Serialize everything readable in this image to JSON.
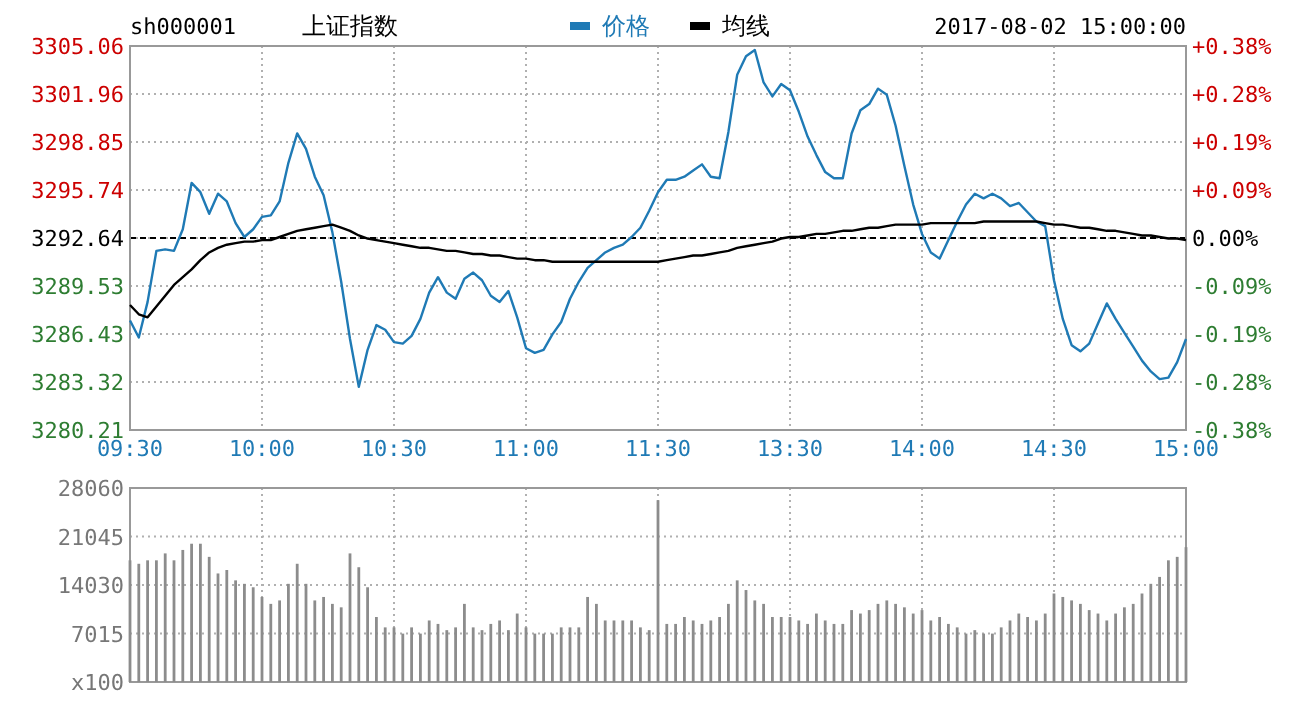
{
  "chart_data": [
    {
      "type": "line",
      "title": "上证指数",
      "subtitle": "sh000001",
      "annotations": [
        "2017-08-02 15:00:00"
      ],
      "legend": "top",
      "grid": true,
      "marker": "none",
      "line_style": "solid",
      "categories": [
        "09:30",
        null,
        null,
        null,
        null,
        null,
        null,
        null,
        null,
        null,
        null,
        null,
        null,
        null,
        null,
        "10:00",
        null,
        null,
        null,
        null,
        null,
        null,
        null,
        null,
        null,
        null,
        null,
        null,
        null,
        null,
        "10:30",
        null,
        null,
        null,
        null,
        null,
        null,
        null,
        null,
        null,
        null,
        null,
        null,
        null,
        null,
        "11:00",
        null,
        null,
        null,
        null,
        null,
        null,
        null,
        null,
        null,
        null,
        null,
        null,
        null,
        null,
        "11:30",
        null,
        null,
        null,
        null,
        null,
        null,
        null,
        null,
        null,
        null,
        null,
        null,
        null,
        null,
        "13:30",
        null,
        null,
        null,
        null,
        null,
        null,
        null,
        null,
        null,
        null,
        null,
        null,
        null,
        null,
        "14:00",
        null,
        null,
        null,
        null,
        null,
        null,
        null,
        null,
        null,
        null,
        null,
        null,
        null,
        null,
        "14:30",
        null,
        null,
        null,
        null,
        null,
        null,
        null,
        null,
        null,
        null,
        null,
        null,
        null,
        null,
        "15:00"
      ],
      "ylim": [
        3280.21,
        3305.06
      ],
      "yticks": [
        3280.21,
        3283.32,
        3286.43,
        3289.53,
        3292.64,
        3295.74,
        3298.85,
        3301.96,
        3305.06
      ],
      "y2lim": [
        -0.377,
        0.377
      ],
      "y2ticks": [
        {
          "value": -0.377,
          "label": "-0.38%"
        },
        {
          "value": -0.283,
          "label": "-0.28%"
        },
        {
          "value": -0.189,
          "label": "-0.19%"
        },
        {
          "value": -0.094,
          "label": "-0.09%"
        },
        {
          "value": 0,
          "label": "0.00%"
        },
        {
          "value": 0.094,
          "label": "+0.09%"
        },
        {
          "value": 0.189,
          "label": "+0.19%"
        },
        {
          "value": 0.283,
          "label": "+0.28%"
        },
        {
          "value": 0.377,
          "label": "+0.38%"
        }
      ],
      "ref_lines": [
        {
          "axis": "y",
          "value": 3292.64,
          "color": "#000000",
          "line_style": "dashed"
        }
      ],
      "series": [
        {
          "name": "价格",
          "color": "#1f7ab5",
          "values": [
            3287.3,
            3286.2,
            3288.5,
            3291.8,
            3291.9,
            3291.8,
            3293.2,
            3296.2,
            3295.6,
            3294.2,
            3295.5,
            3295.0,
            3293.6,
            3292.7,
            3293.2,
            3294.0,
            3294.1,
            3295.0,
            3297.5,
            3299.4,
            3298.4,
            3296.6,
            3295.4,
            3293.0,
            3289.8,
            3286.1,
            3283.0,
            3285.4,
            3287.0,
            3286.7,
            3285.9,
            3285.8,
            3286.3,
            3287.4,
            3289.1,
            3290.1,
            3289.1,
            3288.7,
            3290.0,
            3290.4,
            3289.9,
            3288.9,
            3288.5,
            3289.2,
            3287.5,
            3285.5,
            3285.2,
            3285.4,
            3286.4,
            3287.2,
            3288.7,
            3289.8,
            3290.7,
            3291.2,
            3291.7,
            3292.0,
            3292.2,
            3292.7,
            3293.3,
            3294.4,
            3295.6,
            3296.4,
            3296.4,
            3296.6,
            3297.0,
            3297.4,
            3296.6,
            3296.5,
            3299.5,
            3303.2,
            3304.4,
            3304.8,
            3302.7,
            3301.8,
            3302.6,
            3302.2,
            3300.8,
            3299.2,
            3298.0,
            3296.9,
            3296.5,
            3296.5,
            3299.4,
            3300.9,
            3301.3,
            3302.3,
            3301.9,
            3299.9,
            3297.3,
            3294.8,
            3292.9,
            3291.7,
            3291.3,
            3292.5,
            3293.7,
            3294.8,
            3295.5,
            3295.2,
            3295.5,
            3295.2,
            3294.7,
            3294.9,
            3294.3,
            3293.7,
            3293.4,
            3289.9,
            3287.4,
            3285.7,
            3285.3,
            3285.8,
            3287.1,
            3288.4,
            3287.4,
            3286.5,
            3285.6,
            3284.7,
            3284.0,
            3283.5,
            3283.6,
            3284.6,
            3286.1
          ]
        },
        {
          "name": "均线",
          "color": "#000000",
          "values": [
            3288.3,
            3287.7,
            3287.5,
            3288.2,
            3288.9,
            3289.6,
            3290.1,
            3290.6,
            3291.2,
            3291.7,
            3292.0,
            3292.2,
            3292.3,
            3292.4,
            3292.4,
            3292.5,
            3292.5,
            3292.7,
            3292.9,
            3293.1,
            3293.2,
            3293.3,
            3293.4,
            3293.5,
            3293.3,
            3293.1,
            3292.8,
            3292.6,
            3292.5,
            3292.4,
            3292.3,
            3292.2,
            3292.1,
            3292.0,
            3292.0,
            3291.9,
            3291.8,
            3291.8,
            3291.7,
            3291.6,
            3291.6,
            3291.5,
            3291.5,
            3291.4,
            3291.3,
            3291.3,
            3291.2,
            3291.2,
            3291.1,
            3291.1,
            3291.1,
            3291.1,
            3291.1,
            3291.1,
            3291.1,
            3291.1,
            3291.1,
            3291.1,
            3291.1,
            3291.1,
            3291.1,
            3291.2,
            3291.3,
            3291.4,
            3291.5,
            3291.5,
            3291.6,
            3291.7,
            3291.8,
            3292.0,
            3292.1,
            3292.2,
            3292.3,
            3292.4,
            3292.6,
            3292.7,
            3292.7,
            3292.8,
            3292.9,
            3292.9,
            3293.0,
            3293.1,
            3293.1,
            3293.2,
            3293.3,
            3293.3,
            3293.4,
            3293.5,
            3293.5,
            3293.5,
            3293.5,
            3293.6,
            3293.6,
            3293.6,
            3293.6,
            3293.6,
            3293.6,
            3293.7,
            3293.7,
            3293.7,
            3293.7,
            3293.7,
            3293.7,
            3293.7,
            3293.6,
            3293.5,
            3293.5,
            3293.4,
            3293.3,
            3293.3,
            3293.2,
            3293.1,
            3293.1,
            3293.0,
            3292.9,
            3292.8,
            3292.8,
            3292.7,
            3292.6,
            3292.6,
            3292.5
          ]
        }
      ]
    },
    {
      "type": "bar",
      "color": "#8c8c8c",
      "grid": true,
      "tick_labels": "y",
      "categories": [
        null,
        null,
        null,
        null,
        null,
        null,
        null,
        null,
        null,
        null,
        null,
        null,
        null,
        null,
        null,
        null,
        null,
        null,
        null,
        null,
        null,
        null,
        null,
        null,
        null,
        null,
        null,
        null,
        null,
        null,
        null,
        null,
        null,
        null,
        null,
        null,
        null,
        null,
        null,
        null,
        null,
        null,
        null,
        null,
        null,
        null,
        null,
        null,
        null,
        null,
        null,
        null,
        null,
        null,
        null,
        null,
        null,
        null,
        null,
        null,
        null,
        null,
        null,
        null,
        null,
        null,
        null,
        null,
        null,
        null,
        null,
        null,
        null,
        null,
        null,
        null,
        null,
        null,
        null,
        null,
        null,
        null,
        null,
        null,
        null,
        null,
        null,
        null,
        null,
        null,
        null,
        null,
        null,
        null,
        null,
        null,
        null,
        null,
        null,
        null,
        null,
        null,
        null,
        null,
        null,
        null,
        null,
        null,
        null,
        null,
        null,
        null,
        null,
        null,
        null,
        null,
        null,
        null,
        null,
        null,
        null
      ],
      "ylim": [
        0,
        28060
      ],
      "yticks": [
        {
          "value": 0,
          "label": "x100"
        },
        7015,
        14030,
        21045,
        28060
      ],
      "values": [
        17600,
        17100,
        17600,
        17600,
        18600,
        17600,
        19100,
        20000,
        20000,
        18100,
        15700,
        16200,
        14700,
        14200,
        13700,
        12300,
        11300,
        11800,
        14200,
        17100,
        14200,
        11800,
        12300,
        11300,
        10800,
        18600,
        16600,
        13700,
        9400,
        7900,
        7900,
        7000,
        7900,
        7000,
        8900,
        8400,
        7500,
        7900,
        11300,
        7900,
        7500,
        8400,
        8900,
        7500,
        9900,
        7900,
        7000,
        7000,
        7000,
        7900,
        7900,
        7900,
        12300,
        11300,
        8900,
        8900,
        8900,
        8900,
        7900,
        7500,
        26300,
        8400,
        8400,
        9400,
        8900,
        8400,
        8900,
        9400,
        11300,
        14700,
        13300,
        11800,
        11300,
        9400,
        9400,
        9400,
        8900,
        8400,
        9900,
        8900,
        8400,
        8400,
        10400,
        9900,
        10400,
        11300,
        11800,
        11300,
        10800,
        9900,
        10400,
        8900,
        9400,
        8400,
        7900,
        7000,
        7500,
        7000,
        7000,
        7900,
        8900,
        9900,
        9400,
        8900,
        9900,
        12800,
        12300,
        11800,
        11300,
        10400,
        9900,
        8900,
        9900,
        10800,
        11300,
        12800,
        14200,
        15200,
        17600,
        18100,
        19500
      ]
    }
  ]
}
